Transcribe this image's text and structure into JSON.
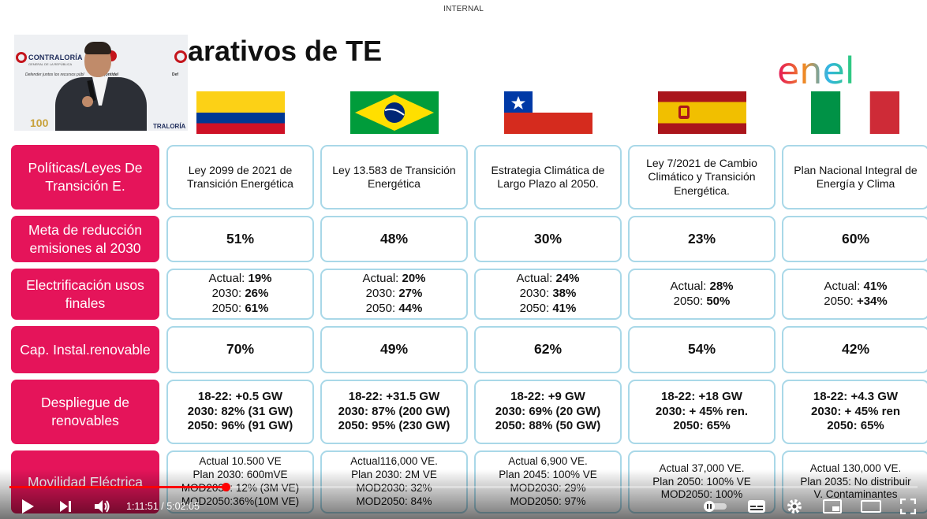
{
  "slide": {
    "banner": "INTERNAL",
    "title": "arativos de TE",
    "logo_text": "enel",
    "colors": {
      "row_label": "#e5145a",
      "cell_border": "#a9d8e8",
      "progress": "#ff0000"
    }
  },
  "video_inset": {
    "org_name": "CONTRALORÍA",
    "org_sub": "GENERAL DE LA REPÚBLICA",
    "motto_left": "Defender juntos los recursos públ",
    "motto_mid": "¡ontidel",
    "motto_right": "Def",
    "brand_bottom": "TRALORÍA",
    "anniversary": "100"
  },
  "countries": [
    {
      "flag": "colombia",
      "flag_icon": "colombia-flag-icon"
    },
    {
      "flag": "brazil",
      "flag_icon": "brazil-flag-icon"
    },
    {
      "flag": "chile",
      "flag_icon": "chile-flag-icon"
    },
    {
      "flag": "spain",
      "flag_icon": "spain-flag-icon"
    },
    {
      "flag": "italy",
      "flag_icon": "italy-flag-icon"
    }
  ],
  "rows": [
    {
      "label": "Políticas/Leyes De Transición E.",
      "cells": [
        "Ley 2099 de 2021 de Transición Energética",
        "Ley 13.583 de Transición Energética",
        "Estrategia Climática de Largo Plazo al 2050.",
        "Ley 7/2021 de Cambio Climático y Transición Energética.",
        "Plan Nacional Integral de Energía y Clima"
      ]
    },
    {
      "label": "Meta de reducción emisiones al 2030",
      "cells": [
        "51%",
        "48%",
        "30%",
        "23%",
        "60%"
      ]
    },
    {
      "label": "Electrificación usos finales",
      "cells": [
        {
          "l1": "Actual: ",
          "v1": "19%",
          "l2": "2030: ",
          "v2": "26%",
          "l3": "2050: ",
          "v3": "61%"
        },
        {
          "l1": "Actual: ",
          "v1": "20%",
          "l2": "2030: ",
          "v2": "27%",
          "l3": "2050: ",
          "v3": "44%"
        },
        {
          "l1": "Actual: ",
          "v1": "24%",
          "l2": "2030: ",
          "v2": "38%",
          "l3": "2050: ",
          "v3": "41%"
        },
        {
          "l1": "Actual: ",
          "v1": "28%",
          "l2": "2050: ",
          "v2": "50%"
        },
        {
          "l1": "Actual: ",
          "v1": "41%",
          "l2": "2050: ",
          "v2": "+34%"
        }
      ]
    },
    {
      "label": "Cap. Instal.renovable",
      "cells": [
        "70%",
        "49%",
        "62%",
        "54%",
        "42%"
      ]
    },
    {
      "label": "Despliegue de renovables",
      "cells": [
        "18-22: +0.5 GW\n2030: 82% (31 GW)\n2050: 96% (91 GW)",
        "18-22: +31.5 GW\n2030: 87% (200 GW)\n2050: 95% (230 GW)",
        "18-22: +9 GW\n2030: 69% (20 GW)\n2050: 88% (50 GW)",
        "18-22: +18 GW\n2030: + 45% ren.\n2050: 65%",
        "18-22: +4.3 GW\n2030: + 45% ren\n2050: 65%"
      ]
    },
    {
      "label": "Movilidad Eléctrica",
      "cells": [
        "Actual 10.500 VE\nPlan 2030: 600mVE\nMOD2030: 12% (3M VE)\nMOD2050:36%(10M VE)",
        "Actual116,000 VE.\nPlan 2030: 2M VE\nMOD2030: 32%\nMOD2050: 84%",
        "Actual 6,900 VE.\nPlan 2045: 100% VE\nMOD2030: 29%\nMOD2050: 97%",
        "Actual 37,000 VE.\nPlan 2050: 100% VE\nMOD2050: 100%",
        "Actual 130,000 VE.\nPlan 2035: No distribuir\nV. Contaminantes"
      ]
    }
  ],
  "player": {
    "current_time": "1:11:51",
    "separator": " / ",
    "duration": "5:02:05",
    "progress_fraction": 0.238,
    "icons": {
      "play": "play-icon",
      "next": "next-icon",
      "volume": "volume-icon",
      "autoplay": "autoplay-toggle-icon",
      "subtitles": "subtitles-icon",
      "settings": "gear-icon",
      "miniplayer": "miniplayer-icon",
      "theater": "theater-icon",
      "fullscreen": "fullscreen-icon"
    }
  }
}
